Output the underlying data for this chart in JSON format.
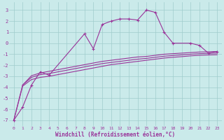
{
  "xlabel": "Windchill (Refroidissement éolien,°C)",
  "bg_color": "#caeaea",
  "grid_color": "#a0cccc",
  "line_color": "#993399",
  "xlim": [
    -0.5,
    23.5
  ],
  "ylim": [
    -7.5,
    3.7
  ],
  "yticks": [
    -7,
    -6,
    -5,
    -4,
    -3,
    -2,
    -1,
    0,
    1,
    2,
    3
  ],
  "xticks": [
    0,
    1,
    2,
    3,
    4,
    5,
    6,
    7,
    8,
    9,
    10,
    11,
    12,
    13,
    14,
    15,
    16,
    17,
    18,
    19,
    20,
    21,
    22,
    23
  ],
  "s1_x": [
    0,
    1,
    2,
    3,
    4,
    8,
    9,
    10,
    11,
    12,
    13,
    14,
    15,
    16,
    17,
    18,
    20,
    21,
    22,
    23
  ],
  "s1_y": [
    -7.0,
    -5.8,
    -3.8,
    -2.6,
    -2.9,
    0.85,
    -0.5,
    1.7,
    2.0,
    2.2,
    2.2,
    2.1,
    3.0,
    2.8,
    1.0,
    0.0,
    0.0,
    -0.2,
    -0.9,
    -0.75
  ],
  "s2_x": [
    1,
    2,
    3,
    4,
    5,
    6,
    7,
    8,
    9,
    10,
    11,
    12,
    13,
    14,
    15,
    16,
    17,
    18,
    19,
    20,
    21,
    22,
    23
  ],
  "s2_y": [
    -3.8,
    -2.95,
    -2.7,
    -2.55,
    -2.4,
    -2.25,
    -2.1,
    -1.95,
    -1.8,
    -1.65,
    -1.55,
    -1.45,
    -1.35,
    -1.25,
    -1.2,
    -1.1,
    -1.0,
    -0.95,
    -0.9,
    -0.85,
    -0.8,
    -0.78,
    -0.75
  ],
  "s3_x": [
    1,
    2,
    3,
    4,
    5,
    6,
    7,
    8,
    9,
    10,
    11,
    12,
    13,
    14,
    15,
    16,
    17,
    18,
    19,
    20,
    21,
    22,
    23
  ],
  "s3_y": [
    -3.8,
    -3.1,
    -2.85,
    -2.75,
    -2.6,
    -2.45,
    -2.3,
    -2.15,
    -2.0,
    -1.85,
    -1.75,
    -1.65,
    -1.55,
    -1.45,
    -1.38,
    -1.28,
    -1.18,
    -1.12,
    -1.06,
    -1.0,
    -0.95,
    -0.92,
    -0.9
  ],
  "s4_x": [
    1,
    2,
    3,
    4,
    5,
    6,
    7,
    8,
    9,
    10,
    11,
    12,
    13,
    14,
    15,
    16,
    17,
    18,
    19,
    20,
    21,
    22,
    23
  ],
  "s4_y": [
    -3.9,
    -3.3,
    -3.1,
    -3.0,
    -2.85,
    -2.7,
    -2.55,
    -2.4,
    -2.25,
    -2.1,
    -1.95,
    -1.85,
    -1.75,
    -1.65,
    -1.55,
    -1.45,
    -1.35,
    -1.28,
    -1.22,
    -1.15,
    -1.1,
    -1.07,
    -1.05
  ]
}
